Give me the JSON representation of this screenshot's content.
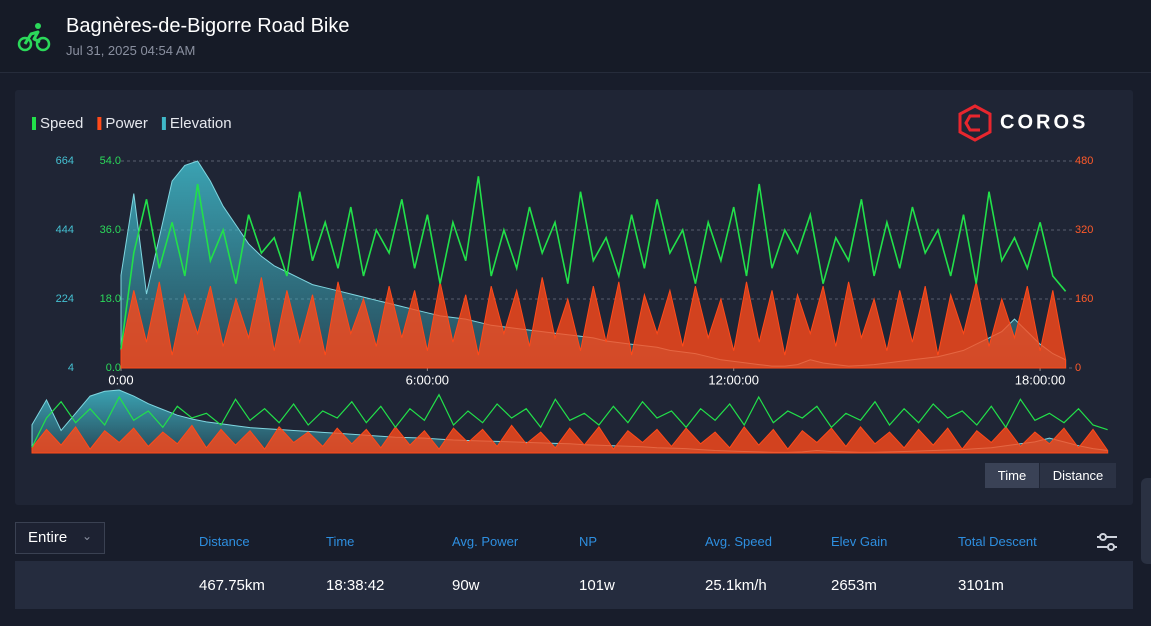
{
  "header": {
    "title": "Bagnères-de-Bigorre Road Bike",
    "date": "Jul 31, 2025 04:54 AM"
  },
  "brand": "COROS",
  "chart_data": {
    "type": "line",
    "x": [
      0,
      0.25,
      0.5,
      0.75,
      1,
      1.25,
      1.5,
      1.75,
      2,
      2.25,
      2.5,
      2.75,
      3,
      3.25,
      3.5,
      3.75,
      4,
      4.25,
      4.5,
      4.75,
      5,
      5.25,
      5.5,
      5.75,
      6,
      6.25,
      6.5,
      6.75,
      7,
      7.25,
      7.5,
      7.75,
      8,
      8.25,
      8.5,
      8.75,
      9,
      9.25,
      9.5,
      9.75,
      10,
      10.25,
      10.5,
      10.75,
      11,
      11.25,
      11.5,
      11.75,
      12,
      12.25,
      12.5,
      12.75,
      13,
      13.25,
      13.5,
      13.75,
      14,
      14.25,
      14.5,
      14.75,
      15,
      15.25,
      15.5,
      15.75,
      16,
      16.25,
      16.5,
      16.75,
      17,
      17.25,
      17.5,
      17.75,
      18,
      18.25,
      18.5
    ],
    "xlim": [
      0,
      18.645
    ],
    "xticks": [
      {
        "value": 0,
        "label": "0:00"
      },
      {
        "value": 6,
        "label": "6:00:00"
      },
      {
        "value": 12,
        "label": "12:00:00"
      },
      {
        "value": 18,
        "label": "18:00:00"
      }
    ],
    "ylim": [
      0,
      54
    ],
    "yticks": [
      {
        "value": 0,
        "label": "0.0"
      },
      {
        "value": 18,
        "label": "18.0"
      },
      {
        "value": 36,
        "label": "36.0"
      },
      {
        "value": 54,
        "label": "54.0"
      }
    ],
    "y2lim": [
      0,
      480
    ],
    "y2ticks": [
      0,
      160,
      320,
      480
    ],
    "y3lim": [
      4,
      664
    ],
    "y3ticks": [
      4,
      224,
      444,
      664
    ],
    "grid": true,
    "series": [
      {
        "name": "Speed",
        "color": "#22e04a",
        "values": [
          5,
          30,
          44,
          26,
          38,
          24,
          48,
          28,
          36,
          22,
          40,
          30,
          34,
          24,
          46,
          28,
          38,
          26,
          42,
          24,
          36,
          30,
          44,
          26,
          40,
          22,
          38,
          28,
          50,
          24,
          36,
          26,
          42,
          30,
          38,
          22,
          46,
          28,
          34,
          24,
          40,
          26,
          44,
          30,
          36,
          22,
          38,
          28,
          42,
          24,
          48,
          26,
          36,
          30,
          40,
          22,
          34,
          28,
          44,
          24,
          38,
          26,
          42,
          30,
          36,
          24,
          40,
          22,
          46,
          28,
          34,
          26,
          38,
          24,
          20
        ]
      },
      {
        "name": "Power",
        "color": "#ff4a1a",
        "axis": "y2",
        "values": [
          40,
          180,
          60,
          200,
          30,
          170,
          80,
          190,
          50,
          160,
          70,
          210,
          40,
          180,
          60,
          170,
          30,
          200,
          80,
          160,
          50,
          190,
          70,
          180,
          40,
          200,
          60,
          170,
          30,
          190,
          80,
          180,
          50,
          210,
          70,
          160,
          40,
          190,
          60,
          200,
          30,
          170,
          80,
          180,
          50,
          190,
          70,
          160,
          40,
          200,
          60,
          180,
          30,
          170,
          80,
          190,
          50,
          200,
          70,
          160,
          40,
          180,
          60,
          190,
          30,
          170,
          80,
          200,
          50,
          160,
          70,
          190,
          40,
          180,
          20
        ]
      },
      {
        "name": "Elevation",
        "color": "#3fb8c8",
        "axis": "y3",
        "values": [
          300,
          560,
          240,
          420,
          600,
          650,
          664,
          600,
          520,
          460,
          400,
          360,
          330,
          310,
          290,
          270,
          260,
          250,
          240,
          230,
          220,
          210,
          200,
          190,
          180,
          170,
          165,
          160,
          150,
          140,
          135,
          130,
          125,
          120,
          115,
          110,
          105,
          100,
          90,
          85,
          80,
          75,
          70,
          60,
          55,
          50,
          40,
          30,
          25,
          20,
          15,
          10,
          10,
          15,
          30,
          20,
          15,
          10,
          12,
          15,
          20,
          25,
          30,
          35,
          40,
          50,
          60,
          80,
          100,
          120,
          160,
          120,
          80,
          50,
          30
        ]
      }
    ]
  },
  "controls": {
    "range": "Entire",
    "buttons": [
      "Time",
      "Distance"
    ]
  },
  "stats": {
    "labels": [
      "Distance",
      "Time",
      "Avg. Power",
      "NP",
      "Avg. Speed",
      "Elev Gain",
      "Total Descent"
    ],
    "values": [
      "467.75km",
      "18:38:42",
      "90w",
      "101w",
      "25.1km/h",
      "2653m",
      "3101m"
    ]
  }
}
